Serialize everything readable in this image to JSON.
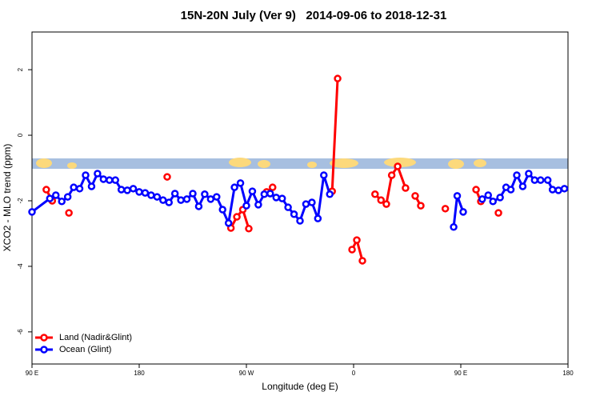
{
  "chart_data": {
    "type": "line",
    "title": "15N-20N July (Ver 9)   2014-09-06 to 2018-12-31",
    "x_label": "Longitude (deg E)",
    "y_label": "XCO2 - MLO trend (ppm)",
    "xlim": [
      90,
      540
    ],
    "xticks": [
      {
        "value": 90,
        "label": "90 E"
      },
      180,
      {
        "value": 270,
        "label": "90 W"
      },
      {
        "value": 360,
        "label": "0"
      },
      {
        "value": 450,
        "label": "90 E"
      },
      {
        "value": 540,
        "label": "180"
      }
    ],
    "ylim": [
      -6.98,
      3.15
    ],
    "yticks": [
      -6,
      -4,
      -2,
      0,
      2
    ],
    "legend": "bottom-left",
    "series": [
      {
        "name": "Land (Nadir&Glint)",
        "color": "#ff0000",
        "x": [
          102,
          107,
          null,
          121,
          null,
          203.5,
          null,
          257,
          262,
          267,
          272,
          null,
          287,
          292,
          null,
          342,
          346.6,
          null,
          358.7,
          362.7,
          367.4,
          null,
          378,
          383,
          387.5,
          392,
          397,
          403.6,
          null,
          411.7,
          416.4,
          null,
          437,
          null,
          462.8,
          466.8,
          null,
          481.6
        ],
        "values": [
          -1.66,
          -2.0,
          null,
          -2.37,
          null,
          -1.27,
          null,
          -2.83,
          -2.49,
          -2.27,
          -2.85,
          null,
          -1.73,
          -1.59,
          null,
          -1.71,
          1.73,
          null,
          -3.49,
          -3.2,
          -3.83,
          null,
          -1.8,
          -1.98,
          -2.1,
          -1.22,
          -0.95,
          -1.61,
          null,
          -1.85,
          -2.15,
          null,
          -2.24,
          null,
          -1.66,
          -2.02,
          null,
          -2.37
        ]
      },
      {
        "name": "Ocean (Glint)",
        "color": "#0000ff",
        "x": [
          90,
          105,
          110,
          115,
          120,
          125,
          130,
          135,
          140,
          145,
          150,
          155,
          160,
          165,
          170,
          175,
          180,
          185,
          190,
          195,
          200,
          205,
          210,
          215,
          220,
          225,
          230,
          235,
          240,
          245,
          250,
          255,
          260,
          265,
          270,
          275,
          280,
          285,
          290,
          295,
          300,
          305,
          310,
          315,
          320,
          325,
          330,
          335,
          340,
          null,
          444,
          447,
          452,
          null,
          468,
          473,
          477,
          483,
          488,
          492,
          497,
          502,
          507,
          512,
          517,
          523,
          527,
          532,
          537
        ],
        "values": [
          -2.34,
          -1.93,
          -1.83,
          -2.02,
          -1.88,
          -1.59,
          -1.63,
          -1.22,
          -1.56,
          -1.17,
          -1.34,
          -1.37,
          -1.37,
          -1.66,
          -1.68,
          -1.63,
          -1.73,
          -1.76,
          -1.83,
          -1.88,
          -1.98,
          -2.05,
          -1.78,
          -1.98,
          -1.95,
          -1.78,
          -2.17,
          -1.8,
          -1.95,
          -1.88,
          -2.27,
          -2.68,
          -1.59,
          -1.46,
          -2.15,
          -1.71,
          -2.12,
          -1.8,
          -1.78,
          -1.9,
          -1.93,
          -2.2,
          -2.41,
          -2.61,
          -2.1,
          -2.05,
          -2.54,
          -1.22,
          -1.8,
          null,
          -2.8,
          -1.85,
          -2.34,
          null,
          -1.95,
          -1.83,
          -2.02,
          -1.9,
          -1.59,
          -1.66,
          -1.22,
          -1.56,
          -1.17,
          -1.37,
          -1.37,
          -1.37,
          -1.66,
          -1.68,
          -1.63
        ]
      }
    ]
  }
}
